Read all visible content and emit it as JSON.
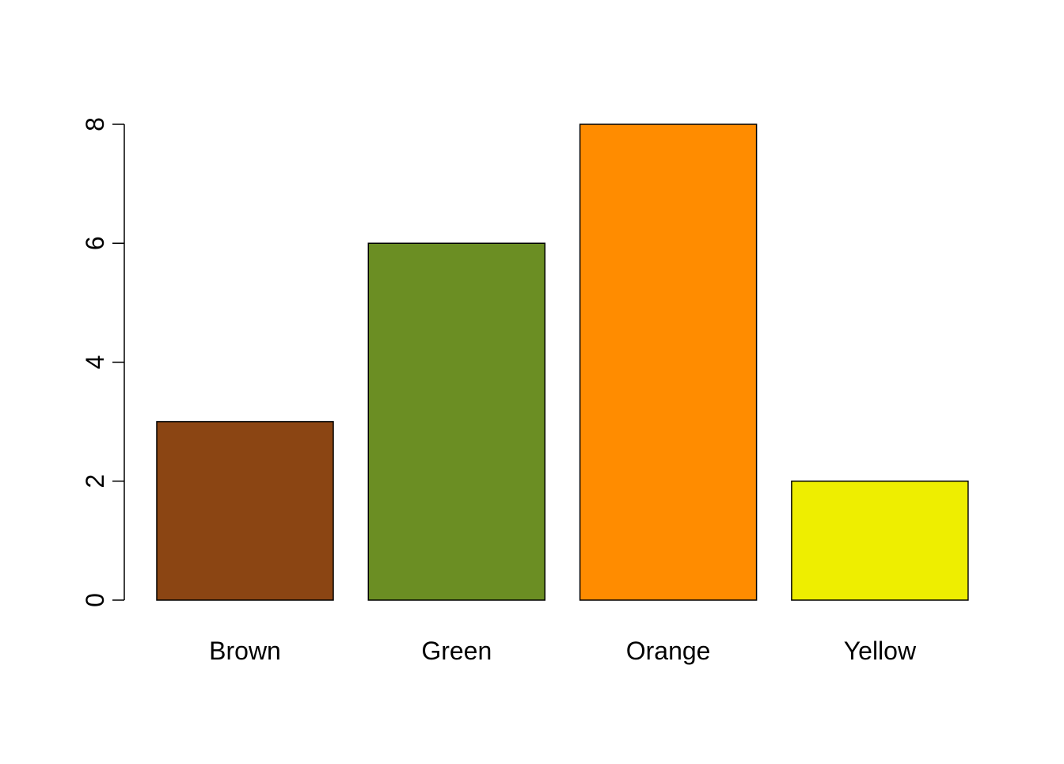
{
  "chart_data": {
    "type": "bar",
    "title": "",
    "xlabel": "",
    "ylabel": "",
    "categories": [
      "Brown",
      "Green",
      "Orange",
      "Yellow"
    ],
    "values": [
      3,
      6,
      8,
      2
    ],
    "colors": [
      "#8B4513",
      "#6B8E23",
      "#FF8C00",
      "#EEEE00"
    ],
    "yticks": [
      0,
      2,
      4,
      6,
      8
    ],
    "ytick_labels": [
      "0",
      "2",
      "4",
      "6",
      "8"
    ],
    "ylim": [
      0,
      8
    ],
    "grid": false,
    "legend": "none"
  }
}
